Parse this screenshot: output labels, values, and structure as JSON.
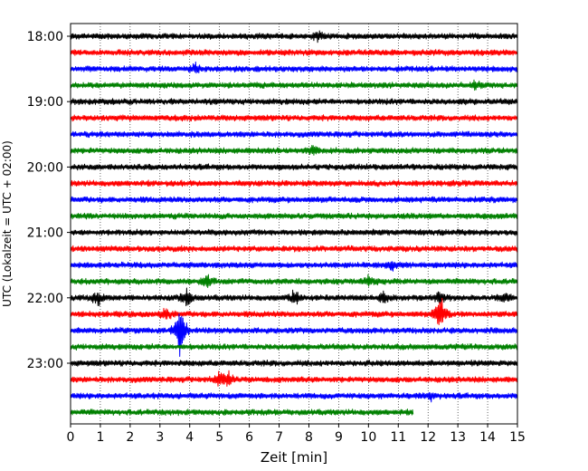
{
  "chart_data": {
    "type": "line",
    "subtype": "helicorder",
    "xlabel": "Zeit  [min]",
    "ylabel": "UTC (Lokalzeit = UTC + 02:00)",
    "xlim": [
      0,
      15
    ],
    "x_ticks": [
      0,
      1,
      2,
      3,
      4,
      5,
      6,
      7,
      8,
      9,
      10,
      11,
      12,
      13,
      14,
      15
    ],
    "x_tick_labels": [
      "0",
      "1",
      "2",
      "3",
      "4",
      "5",
      "6",
      "7",
      "8",
      "9",
      "10",
      "11",
      "12",
      "13",
      "14",
      "15"
    ],
    "y_tick_labels": [
      "18:00",
      "19:00",
      "20:00",
      "21:00",
      "22:00",
      "23:00"
    ],
    "grid": "vertical dotted",
    "row_minutes": 15,
    "color_cycle": [
      "#000000",
      "#ff0000",
      "#0000ff",
      "#008000"
    ],
    "rows": [
      {
        "start": "18:00",
        "end_min": 15,
        "events": [
          {
            "x": 8.3,
            "amp": 0.6
          }
        ]
      },
      {
        "start": "18:15",
        "end_min": 15,
        "events": []
      },
      {
        "start": "18:30",
        "end_min": 15,
        "events": [
          {
            "x": 4.2,
            "amp": 0.5
          }
        ]
      },
      {
        "start": "18:45",
        "end_min": 15,
        "events": [
          {
            "x": 13.6,
            "amp": 0.6
          }
        ]
      },
      {
        "start": "19:00",
        "end_min": 15,
        "events": []
      },
      {
        "start": "19:15",
        "end_min": 15,
        "events": []
      },
      {
        "start": "19:30",
        "end_min": 15,
        "events": []
      },
      {
        "start": "19:45",
        "end_min": 15,
        "events": [
          {
            "x": 8.1,
            "amp": 0.6
          }
        ]
      },
      {
        "start": "20:00",
        "end_min": 15,
        "events": []
      },
      {
        "start": "20:15",
        "end_min": 15,
        "events": []
      },
      {
        "start": "20:30",
        "end_min": 15,
        "events": []
      },
      {
        "start": "20:45",
        "end_min": 15,
        "events": []
      },
      {
        "start": "21:00",
        "end_min": 15,
        "events": []
      },
      {
        "start": "21:15",
        "end_min": 15,
        "events": []
      },
      {
        "start": "21:30",
        "end_min": 15,
        "events": [
          {
            "x": 10.8,
            "amp": 0.5
          }
        ]
      },
      {
        "start": "21:45",
        "end_min": 15,
        "events": [
          {
            "x": 4.6,
            "amp": 0.9
          },
          {
            "x": 10.0,
            "amp": 0.6
          }
        ]
      },
      {
        "start": "22:00",
        "end_min": 15,
        "events": [
          {
            "x": 0.9,
            "amp": 0.8
          },
          {
            "x": 3.9,
            "amp": 1.0
          },
          {
            "x": 7.5,
            "amp": 0.8
          },
          {
            "x": 10.5,
            "amp": 0.7
          },
          {
            "x": 12.4,
            "amp": 0.6
          },
          {
            "x": 14.6,
            "amp": 0.6
          }
        ]
      },
      {
        "start": "22:15",
        "end_min": 15,
        "events": [
          {
            "x": 3.2,
            "amp": 0.8
          },
          {
            "x": 12.4,
            "amp": 2.5
          }
        ]
      },
      {
        "start": "22:30",
        "end_min": 15,
        "events": [
          {
            "x": 3.7,
            "amp": 3.5
          }
        ]
      },
      {
        "start": "22:45",
        "end_min": 15,
        "events": []
      },
      {
        "start": "23:00",
        "end_min": 15,
        "events": []
      },
      {
        "start": "23:15",
        "end_min": 15,
        "events": [
          {
            "x": 5.0,
            "amp": 0.6
          },
          {
            "x": 5.3,
            "amp": 0.9
          }
        ]
      },
      {
        "start": "23:30",
        "end_min": 15,
        "events": [
          {
            "x": 12.1,
            "amp": 0.4
          }
        ]
      },
      {
        "start": "23:45",
        "end_min": 11.5,
        "events": []
      }
    ]
  }
}
